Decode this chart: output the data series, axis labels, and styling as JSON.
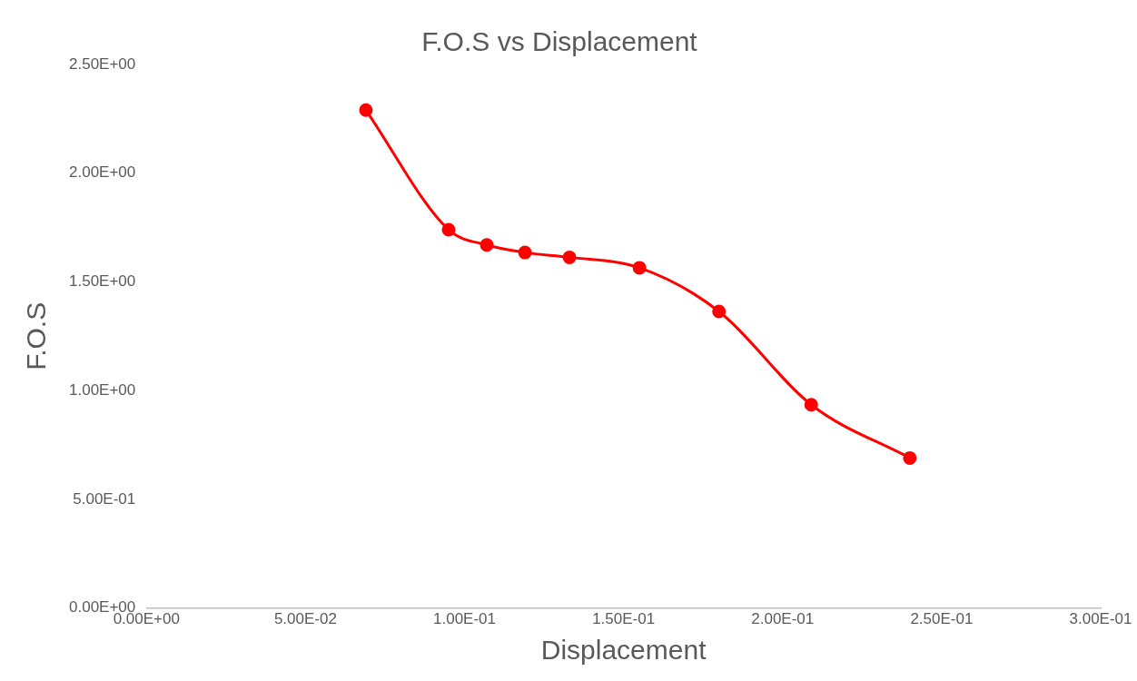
{
  "chart_data": {
    "type": "line",
    "title": "F.O.S vs Displacement",
    "xlabel": "Displacement",
    "ylabel": "F.O.S",
    "x": [
      0.069,
      0.095,
      0.107,
      0.119,
      0.133,
      0.155,
      0.18,
      0.209,
      0.24
    ],
    "series": [
      {
        "color": "#ff0000",
        "values": [
          2.29,
          1.74,
          1.67,
          1.635,
          1.613,
          1.565,
          1.364,
          0.935,
          0.69
        ]
      }
    ],
    "xlim": [
      0,
      0.3
    ],
    "xticks": [
      {
        "value": 0,
        "label": "0.00E+00"
      },
      {
        "value": 0.05,
        "label": "5.00E-02"
      },
      {
        "value": 0.1,
        "label": "1.00E-01"
      },
      {
        "value": 0.15,
        "label": "1.50E-01"
      },
      {
        "value": 0.2,
        "label": "2.00E-01"
      },
      {
        "value": 0.25,
        "label": "2.50E-01"
      },
      {
        "value": 0.3,
        "label": "3.00E-01"
      }
    ],
    "ylim": [
      0,
      2.5
    ],
    "yticks": [
      {
        "value": 0,
        "label": "0.00E+00"
      },
      {
        "value": 0.5,
        "label": "5.00E-01"
      },
      {
        "value": 1,
        "label": "1.00E+00"
      },
      {
        "value": 1.5,
        "label": "1.50E+00"
      },
      {
        "value": 2,
        "label": "2.00E+00"
      },
      {
        "value": 2.5,
        "label": "2.50E+00"
      }
    ],
    "grid": false,
    "legend": false,
    "marker": "circle",
    "line_style": "solid"
  }
}
